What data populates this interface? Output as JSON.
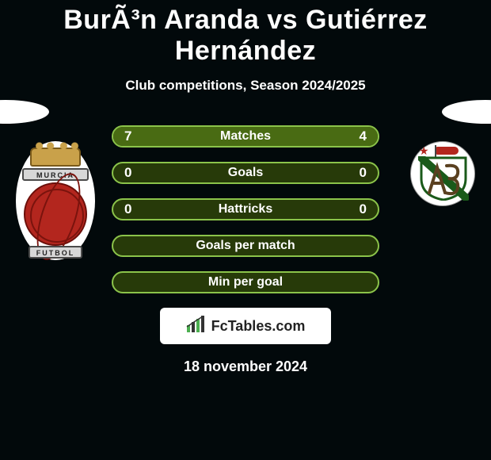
{
  "title": "BurÃ³n Aranda vs Gutiérrez Hernández",
  "subtitle": "Club competitions, Season 2024/2025",
  "date": "18 november 2024",
  "brand": "FcTables.com",
  "left_crest": {
    "band_top": "MURCIA",
    "band_bottom": "FUTBOL"
  },
  "colors": {
    "background": "#02090b",
    "pill_border": "#8bc34a",
    "pill_bg": "#273a09",
    "pill_fill": "#496b13",
    "text": "#ffffff"
  },
  "rows": [
    {
      "label": "Matches",
      "left": "7",
      "right": "4",
      "left_pct": 64,
      "right_pct": 36
    },
    {
      "label": "Goals",
      "left": "0",
      "right": "0",
      "left_pct": 0,
      "right_pct": 0
    },
    {
      "label": "Hattricks",
      "left": "0",
      "right": "0",
      "left_pct": 0,
      "right_pct": 0
    },
    {
      "label": "Goals per match",
      "left": "",
      "right": "",
      "left_pct": 0,
      "right_pct": 0
    },
    {
      "label": "Min per goal",
      "left": "",
      "right": "",
      "left_pct": 0,
      "right_pct": 0
    }
  ]
}
